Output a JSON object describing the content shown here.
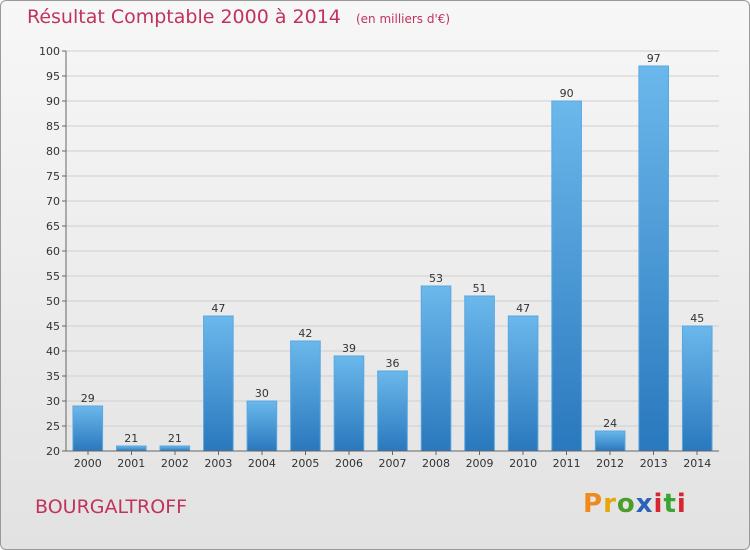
{
  "chart_data": {
    "type": "bar",
    "title": "Résultat Comptable 2000 à 2014",
    "subtitle": "(en milliers d'€)",
    "categories": [
      "2000",
      "2001",
      "2002",
      "2003",
      "2004",
      "2005",
      "2006",
      "2007",
      "2008",
      "2009",
      "2010",
      "2011",
      "2012",
      "2013",
      "2014"
    ],
    "values": [
      29,
      21,
      21,
      47,
      30,
      42,
      39,
      36,
      53,
      51,
      47,
      90,
      24,
      97,
      45
    ],
    "ylim": [
      20,
      100
    ],
    "yticks": [
      20,
      25,
      30,
      35,
      40,
      45,
      50,
      55,
      60,
      65,
      70,
      75,
      80,
      85,
      90,
      95,
      100
    ],
    "xlabel": "",
    "ylabel": "",
    "grid": true
  },
  "location": {
    "name": "BOURGALTROFF"
  },
  "branding": {
    "logo_letters": [
      "P",
      "r",
      "o",
      "x",
      "i",
      "t",
      "i"
    ],
    "logo_colors": [
      "#f08a1c",
      "#e8a60c",
      "#4a9e2a",
      "#2c63b5",
      "#d8262e",
      "#3aa535",
      "#d8262e"
    ]
  },
  "colors": {
    "bar": "#3d8fd1",
    "bar_light": "#6bb8ec",
    "title": "#c0335c"
  }
}
